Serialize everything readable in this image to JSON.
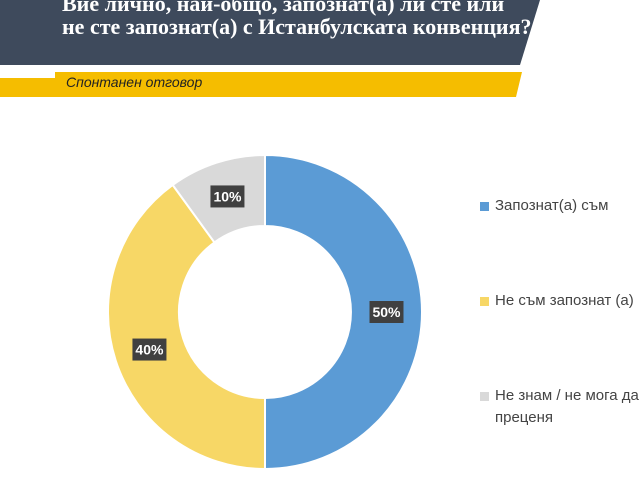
{
  "chart_data": {
    "type": "donut",
    "title": "Вие лично, най-общо, запознат(а) ли сте или не сте запознат(а) с Истанбулската конвенция?",
    "subtitle": "Спонтанен отговор",
    "categories": [
      "Запознат(а) съм",
      "Не съм запознат (а)",
      "Не знам / не мога да преценя"
    ],
    "values": [
      50,
      40,
      10
    ],
    "value_labels": [
      "50%",
      "40%",
      "10%"
    ],
    "colors": [
      "#5b9bd5",
      "#f7d766",
      "#d9d9d9"
    ]
  }
}
